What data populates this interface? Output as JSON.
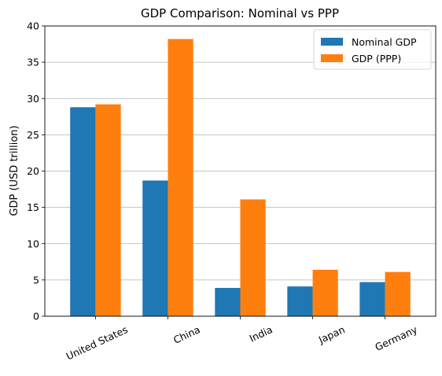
{
  "chart_data": {
    "type": "bar",
    "title": "GDP Comparison: Nominal vs PPP",
    "xlabel": "",
    "ylabel": "GDP (USD trillion)",
    "categories": [
      "United States",
      "China",
      "India",
      "Japan",
      "Germany"
    ],
    "series": [
      {
        "name": "Nominal GDP",
        "values": [
          28.8,
          18.7,
          3.9,
          4.1,
          4.7
        ],
        "color": "#1f77b4"
      },
      {
        "name": "GDP (PPP)",
        "values": [
          29.2,
          38.2,
          16.1,
          6.4,
          6.1
        ],
        "color": "#ff7f0e"
      }
    ],
    "ylim": [
      0,
      40
    ],
    "yticks": [
      "0",
      "5",
      "10",
      "15",
      "20",
      "25",
      "30",
      "35",
      "40"
    ],
    "grid": "y",
    "grid_color": "#b0b0b0",
    "legend_position": "top-right",
    "x_tick_rotation": "rotated"
  }
}
